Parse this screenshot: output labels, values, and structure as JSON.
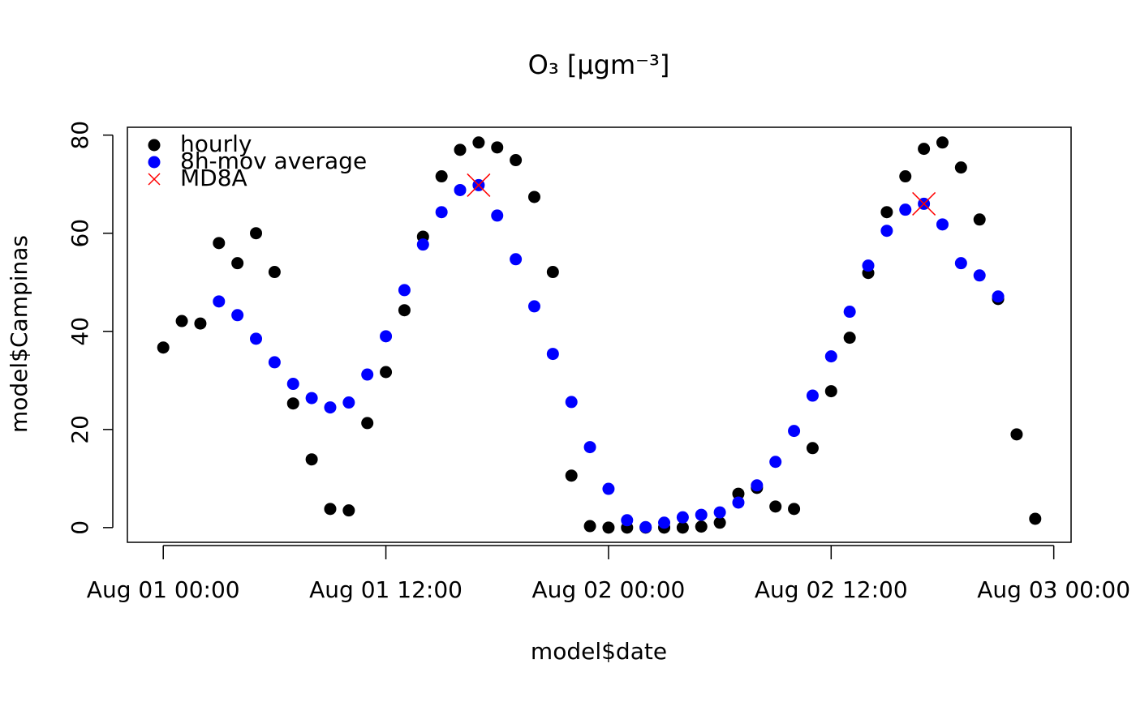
{
  "chart_data": {
    "type": "scatter",
    "title": "O₃  [μgm⁻³]",
    "x_label": "model$date",
    "y_label": "model$Campinas",
    "x": [
      "Aug 01 00:00",
      "Aug 01 01:00",
      "Aug 01 02:00",
      "Aug 01 03:00",
      "Aug 01 04:00",
      "Aug 01 05:00",
      "Aug 01 06:00",
      "Aug 01 07:00",
      "Aug 01 08:00",
      "Aug 01 09:00",
      "Aug 01 10:00",
      "Aug 01 11:00",
      "Aug 01 12:00",
      "Aug 01 13:00",
      "Aug 01 14:00",
      "Aug 01 15:00",
      "Aug 01 16:00",
      "Aug 01 17:00",
      "Aug 01 18:00",
      "Aug 01 19:00",
      "Aug 01 20:00",
      "Aug 01 21:00",
      "Aug 01 22:00",
      "Aug 01 23:00",
      "Aug 02 00:00",
      "Aug 02 01:00",
      "Aug 02 02:00",
      "Aug 02 03:00",
      "Aug 02 04:00",
      "Aug 02 05:00",
      "Aug 02 06:00",
      "Aug 02 07:00",
      "Aug 02 08:00",
      "Aug 02 09:00",
      "Aug 02 10:00",
      "Aug 02 11:00",
      "Aug 02 12:00",
      "Aug 02 13:00",
      "Aug 02 14:00",
      "Aug 02 15:00",
      "Aug 02 16:00",
      "Aug 02 17:00",
      "Aug 02 18:00",
      "Aug 02 19:00",
      "Aug 02 20:00",
      "Aug 02 21:00",
      "Aug 02 22:00",
      "Aug 02 23:00"
    ],
    "series": [
      {
        "name": "hourly",
        "color": "#000000",
        "marker": "circle",
        "values": [
          36.7,
          42.1,
          41.6,
          58.0,
          53.9,
          60.0,
          52.1,
          25.3,
          13.9,
          3.8,
          3.5,
          21.3,
          31.7,
          44.3,
          59.3,
          71.6,
          77.0,
          78.5,
          77.5,
          74.9,
          67.4,
          52.1,
          10.6,
          0.3,
          0,
          0,
          0,
          0,
          0,
          0.2,
          1.0,
          6.9,
          8.1,
          4.3,
          3.8,
          16.2,
          27.8,
          38.7,
          51.9,
          64.3,
          71.6,
          77.2,
          78.5,
          73.4,
          62.8,
          46.6,
          19.0,
          1.8
        ]
      },
      {
        "name": "8h-mov average",
        "color": "#0000ff",
        "marker": "circle",
        "values": [
          null,
          null,
          null,
          46.1,
          43.3,
          38.5,
          33.7,
          29.3,
          26.4,
          24.5,
          25.5,
          31.2,
          39.0,
          48.4,
          57.7,
          64.3,
          68.8,
          69.8,
          63.6,
          54.7,
          45.1,
          35.4,
          25.6,
          16.4,
          7.9,
          1.5,
          0.1,
          1.0,
          2.1,
          2.6,
          3.1,
          5.1,
          8.6,
          13.4,
          19.7,
          26.9,
          34.9,
          44.0,
          53.4,
          60.5,
          64.8,
          66.0,
          61.8,
          53.9,
          51.4,
          47.1,
          null,
          null
        ]
      },
      {
        "name": "MD8A",
        "color": "#ff0000",
        "marker": "x",
        "values": [
          null,
          null,
          null,
          null,
          null,
          null,
          null,
          null,
          null,
          null,
          null,
          null,
          null,
          null,
          null,
          null,
          null,
          69.8,
          null,
          null,
          null,
          null,
          null,
          null,
          null,
          null,
          null,
          null,
          null,
          null,
          null,
          null,
          null,
          null,
          null,
          null,
          null,
          null,
          null,
          null,
          null,
          66.0,
          null,
          null,
          null,
          null,
          null,
          null
        ]
      }
    ],
    "xlim": [
      "Jul 31 22:04",
      "Aug 03 00:56"
    ],
    "xticks": [
      "Aug 01 00:00",
      "Aug 01 12:00",
      "Aug 02 00:00",
      "Aug 02 12:00",
      "Aug 03 00:00"
    ],
    "ylim": [
      -3.0,
      81.6
    ],
    "yticks": [
      0,
      20,
      40,
      60,
      80
    ],
    "legend": "topleft"
  }
}
